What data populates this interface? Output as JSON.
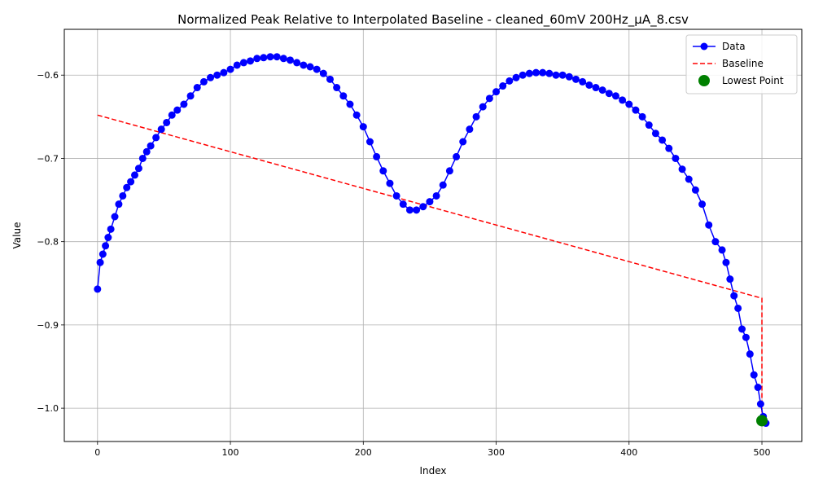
{
  "chart_data": {
    "type": "line",
    "title": "Normalized Peak Relative to Interpolated Baseline - cleaned_60mV 200Hz_μA_8.csv",
    "xlabel": "Index",
    "ylabel": "Value",
    "xlim": [
      -25,
      530
    ],
    "ylim": [
      -1.04,
      -0.545
    ],
    "xticks": [
      0,
      100,
      200,
      300,
      400,
      500
    ],
    "xtick_labels": [
      "0",
      "100",
      "200",
      "300",
      "400",
      "500"
    ],
    "yticks": [
      -1.0,
      -0.9,
      -0.8,
      -0.7,
      -0.6
    ],
    "ytick_labels": [
      "−1.0",
      "−0.9",
      "−0.8",
      "−0.7",
      "−0.6"
    ],
    "grid": true,
    "legend_position": "top-right",
    "legend": [
      {
        "label": "Data",
        "style": "line-marker",
        "color": "#0000ff"
      },
      {
        "label": "Baseline",
        "style": "dashed",
        "color": "#ff0000"
      },
      {
        "label": "Lowest Point",
        "style": "marker",
        "color": "#008000"
      }
    ],
    "data_series": {
      "name": "Data",
      "color": "#0000ff",
      "x": [
        0,
        2,
        4,
        6,
        8,
        10,
        13,
        16,
        19,
        22,
        25,
        28,
        31,
        34,
        37,
        40,
        44,
        48,
        52,
        56,
        60,
        65,
        70,
        75,
        80,
        85,
        90,
        95,
        100,
        105,
        110,
        115,
        120,
        125,
        130,
        135,
        140,
        145,
        150,
        155,
        160,
        165,
        170,
        175,
        180,
        185,
        190,
        195,
        200,
        205,
        210,
        215,
        220,
        225,
        230,
        235,
        240,
        245,
        250,
        255,
        260,
        265,
        270,
        275,
        280,
        285,
        290,
        295,
        300,
        305,
        310,
        315,
        320,
        325,
        330,
        335,
        340,
        345,
        350,
        355,
        360,
        365,
        370,
        375,
        380,
        385,
        390,
        395,
        400,
        405,
        410,
        415,
        420,
        425,
        430,
        435,
        440,
        445,
        450,
        455,
        460,
        465,
        470,
        473,
        476,
        479,
        482,
        485,
        488,
        491,
        494,
        497,
        499,
        501,
        503
      ],
      "y": [
        -0.857,
        -0.825,
        -0.815,
        -0.805,
        -0.795,
        -0.785,
        -0.77,
        -0.755,
        -0.745,
        -0.735,
        -0.728,
        -0.72,
        -0.712,
        -0.7,
        -0.692,
        -0.685,
        -0.675,
        -0.665,
        -0.657,
        -0.648,
        -0.642,
        -0.635,
        -0.625,
        -0.615,
        -0.608,
        -0.603,
        -0.6,
        -0.597,
        -0.593,
        -0.588,
        -0.585,
        -0.583,
        -0.58,
        -0.579,
        -0.578,
        -0.578,
        -0.58,
        -0.582,
        -0.585,
        -0.588,
        -0.59,
        -0.593,
        -0.598,
        -0.605,
        -0.615,
        -0.625,
        -0.635,
        -0.648,
        -0.662,
        -0.68,
        -0.698,
        -0.715,
        -0.73,
        -0.745,
        -0.755,
        -0.762,
        -0.762,
        -0.758,
        -0.752,
        -0.745,
        -0.732,
        -0.715,
        -0.698,
        -0.68,
        -0.665,
        -0.65,
        -0.638,
        -0.628,
        -0.62,
        -0.613,
        -0.607,
        -0.603,
        -0.6,
        -0.598,
        -0.597,
        -0.597,
        -0.598,
        -0.6,
        -0.6,
        -0.602,
        -0.605,
        -0.608,
        -0.612,
        -0.615,
        -0.618,
        -0.622,
        -0.625,
        -0.63,
        -0.635,
        -0.642,
        -0.65,
        -0.66,
        -0.67,
        -0.678,
        -0.688,
        -0.7,
        -0.713,
        -0.725,
        -0.738,
        -0.755,
        -0.78,
        -0.8,
        -0.81,
        -0.825,
        -0.845,
        -0.865,
        -0.88,
        -0.905,
        -0.915,
        -0.935,
        -0.96,
        -0.975,
        -0.995,
        -1.01,
        -1.018
      ]
    },
    "baseline_series": {
      "name": "Baseline",
      "color": "#ff0000",
      "x": [
        0,
        500,
        500
      ],
      "y": [
        -0.648,
        -0.868,
        -1.015
      ]
    },
    "lowest_point": {
      "name": "Lowest Point",
      "color": "#008000",
      "x": 500,
      "y": -1.015
    }
  }
}
